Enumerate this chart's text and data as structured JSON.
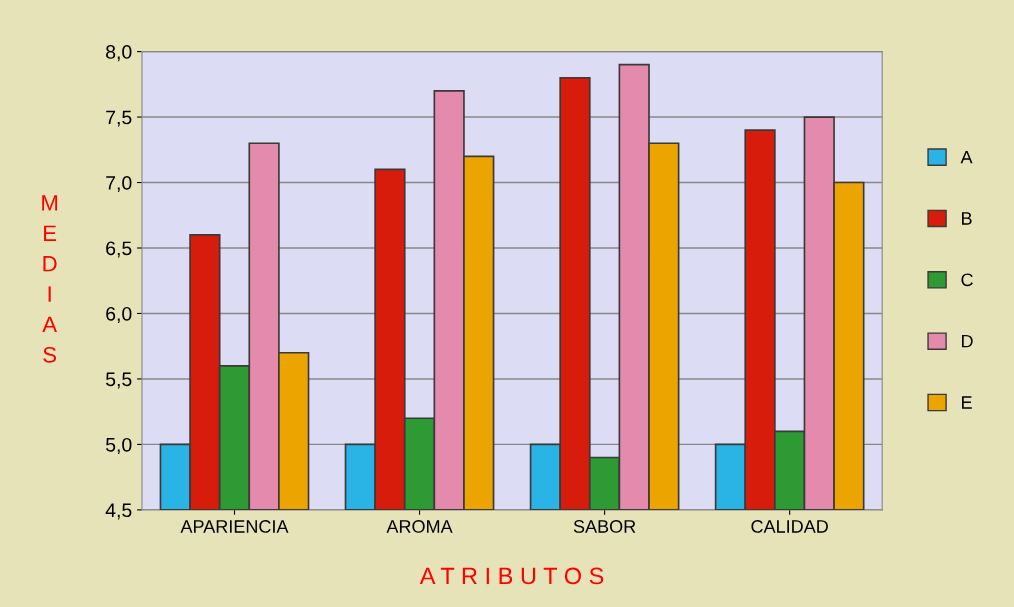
{
  "chart_data": {
    "type": "bar",
    "categories": [
      "APARIENCIA",
      "AROMA",
      "SABOR",
      "CALIDAD"
    ],
    "series": [
      {
        "name": "A",
        "color": "#2ab4e6",
        "values": [
          5.0,
          5.0,
          5.0,
          5.0
        ]
      },
      {
        "name": "B",
        "color": "#d81c0c",
        "values": [
          6.6,
          7.1,
          7.8,
          7.4
        ]
      },
      {
        "name": "C",
        "color": "#2e9a34",
        "values": [
          5.6,
          5.2,
          4.9,
          5.1
        ]
      },
      {
        "name": "D",
        "color": "#e48aac",
        "values": [
          7.3,
          7.7,
          7.9,
          7.5
        ]
      },
      {
        "name": "E",
        "color": "#eca400",
        "values": [
          5.7,
          7.2,
          7.3,
          7.0
        ]
      }
    ],
    "ylabel": "MEDIAS",
    "xlabel": "A T R I B U T O S",
    "ylim": [
      4.5,
      8.0
    ],
    "yticks": [
      {
        "value": 4.5,
        "label": "4,5"
      },
      {
        "value": 5.0,
        "label": "5,0"
      },
      {
        "value": 5.5,
        "label": "5,5"
      },
      {
        "value": 6.0,
        "label": "6,0"
      },
      {
        "value": 6.5,
        "label": "6,5"
      },
      {
        "value": 7.0,
        "label": "7,0"
      },
      {
        "value": 7.5,
        "label": "7,5"
      },
      {
        "value": 8.0,
        "label": "8,0"
      }
    ],
    "grid": "y",
    "legend": "right"
  }
}
